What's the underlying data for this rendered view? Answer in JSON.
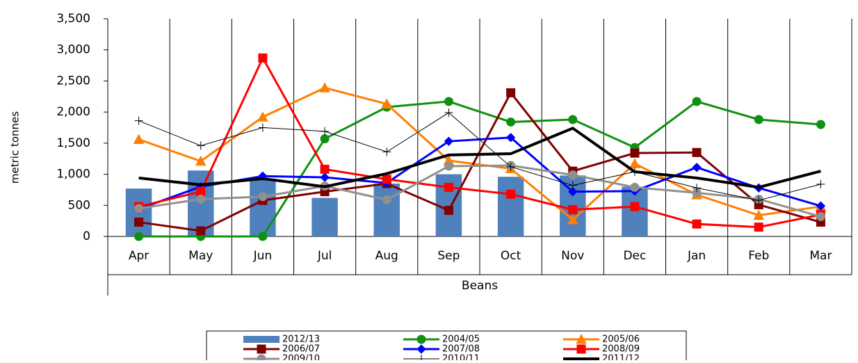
{
  "chart_data": {
    "type": "bar",
    "y_label": "metric tonnes",
    "x_label": "Beans",
    "categories": [
      "Apr",
      "May",
      "Jun",
      "Jul",
      "Aug",
      "Sep",
      "Oct",
      "Nov",
      "Dec",
      "Jan",
      "Feb",
      "Mar"
    ],
    "ylim": [
      0,
      3500
    ],
    "yticks": [
      0,
      500,
      {
        "value": 1000,
        "label": "1,000"
      },
      {
        "value": 1500,
        "label": "1,500"
      },
      {
        "value": 2000,
        "label": "2,000"
      },
      {
        "value": 2500,
        "label": "2,500"
      },
      {
        "value": 3000,
        "label": "3,000"
      },
      {
        "value": 3500,
        "label": "3,500"
      }
    ],
    "series": [
      {
        "name": "2012/13",
        "type": "bar",
        "color": "#4f81bd",
        "values": [
          770,
          1060,
          930,
          620,
          850,
          1000,
          960,
          980,
          800,
          null,
          null,
          null
        ]
      },
      {
        "name": "2004/05",
        "type": "line",
        "color": "#109010",
        "marker": "circle",
        "values": [
          0,
          0,
          0,
          1570,
          2080,
          2170,
          1840,
          1880,
          1430,
          2170,
          1880,
          1800
        ]
      },
      {
        "name": "2005/06",
        "type": "line",
        "color": "#ff8000",
        "marker": "triangle",
        "values": [
          1560,
          1210,
          1920,
          2390,
          2130,
          1220,
          1090,
          270,
          1170,
          670,
          340,
          480
        ]
      },
      {
        "name": "2006/07",
        "type": "line",
        "color": "#800000",
        "marker": "square",
        "values": [
          230,
          90,
          580,
          720,
          850,
          420,
          2310,
          1050,
          1340,
          1350,
          510,
          230
        ]
      },
      {
        "name": "2007/08",
        "type": "line",
        "color": "#0000ff",
        "marker": "diamond",
        "values": [
          440,
          800,
          970,
          950,
          860,
          1530,
          1590,
          720,
          730,
          1110,
          780,
          490
        ]
      },
      {
        "name": "2008/09",
        "type": "line",
        "color": "#ff0000",
        "marker": "square",
        "values": [
          480,
          720,
          2870,
          1080,
          920,
          790,
          680,
          430,
          480,
          200,
          150,
          350
        ]
      },
      {
        "name": "2009/10",
        "type": "line",
        "color": "#909090",
        "marker": "circle",
        "values": [
          450,
          600,
          640,
          810,
          590,
          1130,
          1140,
          990,
          790,
          700,
          600,
          320
        ]
      },
      {
        "name": "2010/11",
        "type": "line",
        "color": "#000000",
        "marker": "plus",
        "width": 1,
        "values": [
          1860,
          1460,
          1750,
          1690,
          1360,
          1990,
          1120,
          820,
          1040,
          780,
          580,
          840
        ]
      },
      {
        "name": "2011/12",
        "type": "line",
        "color": "#000000",
        "marker": "none",
        "width": 4,
        "values": [
          940,
          830,
          930,
          800,
          1010,
          1310,
          1330,
          1740,
          1040,
          940,
          790,
          1050
        ]
      }
    ]
  }
}
